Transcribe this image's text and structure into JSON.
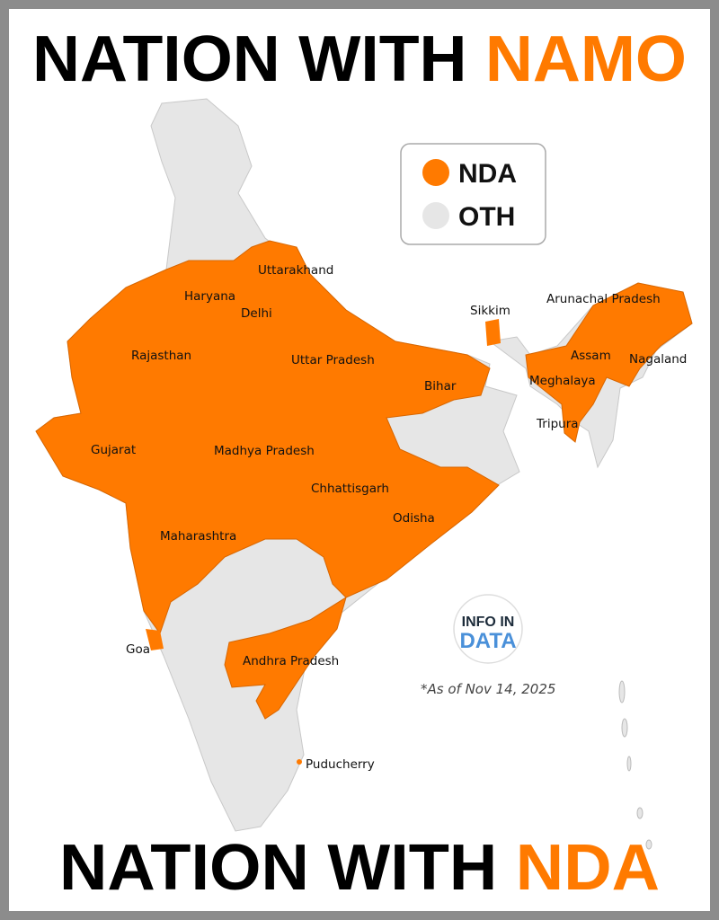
{
  "header": {
    "title_part1": "NATION WITH ",
    "title_part2": "NAMO"
  },
  "footer": {
    "title_part1": "NATION WITH ",
    "title_part2": "NDA"
  },
  "legend": [
    {
      "label": "NDA",
      "color": "#ff7a00"
    },
    {
      "label": "OTH",
      "color": "#e6e6e6"
    }
  ],
  "colors": {
    "nda": "#ff7a00",
    "other": "#e6e6e6",
    "title": "#000000",
    "accent": "#ff7a00"
  },
  "states_nda": [
    "Uttarakhand",
    "Haryana",
    "Delhi",
    "Rajasthan",
    "Uttar Pradesh",
    "Bihar",
    "Sikkim",
    "Arunachal Pradesh",
    "Assam",
    "Nagaland",
    "Meghalaya",
    "Tripura",
    "Gujarat",
    "Madhya Pradesh",
    "Chhattisgarh",
    "Odisha",
    "Maharashtra",
    "Goa",
    "Andhra Pradesh",
    "Puducherry"
  ],
  "note": "*As of Nov 14, 2025",
  "logo": {
    "line1": "INFO IN",
    "line2": "DATA"
  }
}
